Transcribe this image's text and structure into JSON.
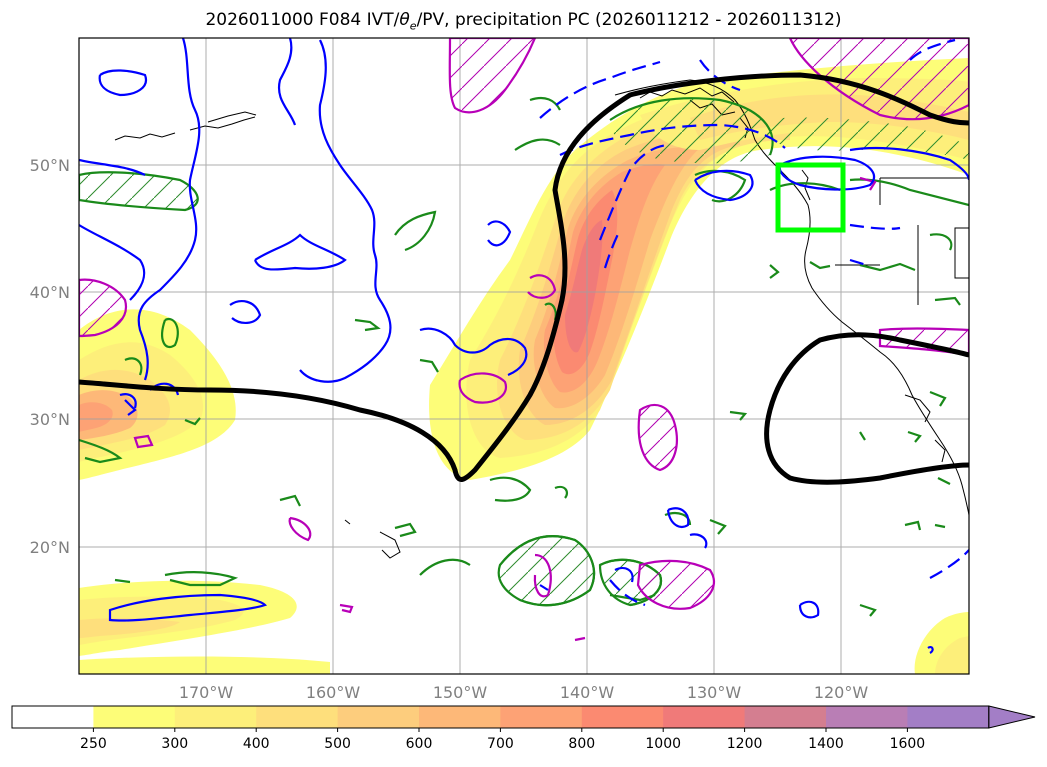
{
  "title": {
    "prefix": "2026011000 F084 IVT/",
    "theta": "θ",
    "theta_sub": "e",
    "suffix": "/PV, precipitation PC (2026011212 - 2026011312)"
  },
  "map": {
    "lon_range": [
      -180,
      -110
    ],
    "lat_range": [
      10,
      60
    ],
    "lat_ticks": [
      {
        "value": 50,
        "label": "50°N"
      },
      {
        "value": 40,
        "label": "40°N"
      },
      {
        "value": 30,
        "label": "30°N"
      },
      {
        "value": 20,
        "label": "20°N"
      }
    ],
    "lon_ticks": [
      {
        "value": -170,
        "label": "170°W"
      },
      {
        "value": -160,
        "label": "160°W"
      },
      {
        "value": -150,
        "label": "150°W"
      },
      {
        "value": -140,
        "label": "140°W"
      },
      {
        "value": -130,
        "label": "130°W"
      },
      {
        "value": -120,
        "label": "120°W"
      }
    ],
    "grid": true,
    "target_box": {
      "lon": [
        -125,
        -120
      ],
      "lat": [
        45,
        50
      ],
      "color": "#00ff00"
    }
  },
  "colorbar": {
    "levels": [
      "250",
      "300",
      "400",
      "500",
      "600",
      "700",
      "800",
      "1000",
      "1200",
      "1400",
      "1600"
    ],
    "colors": [
      "#ffffff",
      "#fdfd78",
      "#fdef7a",
      "#fedf7c",
      "#fdcd7d",
      "#fdb878",
      "#fda275",
      "#fb8a71",
      "#f07a79",
      "#d47e90",
      "#b97eb5",
      "#a37ec6"
    ],
    "extend": "max"
  }
}
